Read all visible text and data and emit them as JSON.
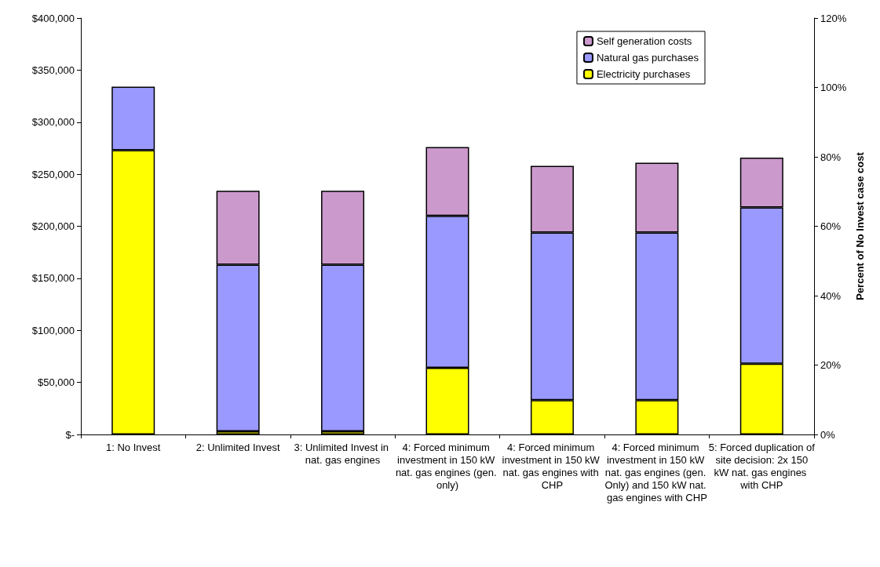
{
  "chart_data": {
    "type": "bar",
    "stacked": true,
    "ylabel": null,
    "y2label": "Percent of No Invest case cost",
    "categories": [
      "1: No Invest",
      "2: Unlimited Invest",
      "3: Unlimited Invest in nat. gas engines",
      "4: Forced minimum investment in 150 kW nat. gas engines (gen. only)",
      "4: Forced minimum investment in 150 kW nat. gas engines with CHP",
      "4: Forced minimum investment in 150 kW nat. gas engines (gen. Only) and 150 kW nat. gas engines with CHP",
      "5: Forced duplication of site decision: 2x 150 kW nat. gas engines with CHP"
    ],
    "series": [
      {
        "name": "Electricity purchases",
        "color": "#ffff00",
        "values": [
          273000,
          3000,
          3000,
          64000,
          33000,
          33000,
          68000
        ]
      },
      {
        "name": "Natural gas purchases",
        "color": "#9999ff",
        "values": [
          61000,
          160000,
          160000,
          146000,
          161000,
          161000,
          150000
        ]
      },
      {
        "name": "Self generation costs",
        "color": "#cc99cc",
        "values": [
          null,
          71000,
          71000,
          66000,
          64000,
          67000,
          48000
        ]
      }
    ],
    "ylim": [
      0,
      400000
    ],
    "yticks": [
      {
        "value": 0,
        "label": "$-"
      },
      {
        "value": 50000,
        "label": "$50,000"
      },
      {
        "value": 100000,
        "label": "$100,000"
      },
      {
        "value": 150000,
        "label": "$150,000"
      },
      {
        "value": 200000,
        "label": "$200,000"
      },
      {
        "value": 250000,
        "label": "$250,000"
      },
      {
        "value": 300000,
        "label": "$300,000"
      },
      {
        "value": 350000,
        "label": "$350,000"
      },
      {
        "value": 400000,
        "label": "$400,000"
      }
    ],
    "y2lim": [
      0,
      120
    ],
    "y2ticks": [
      {
        "value": 0,
        "label": "0%"
      },
      {
        "value": 20,
        "label": "20%"
      },
      {
        "value": 40,
        "label": "40%"
      },
      {
        "value": 60,
        "label": "60%"
      },
      {
        "value": 80,
        "label": "80%"
      },
      {
        "value": 100,
        "label": "100%"
      },
      {
        "value": 120,
        "label": "120%"
      }
    ],
    "grid": false,
    "legend": "top right"
  }
}
